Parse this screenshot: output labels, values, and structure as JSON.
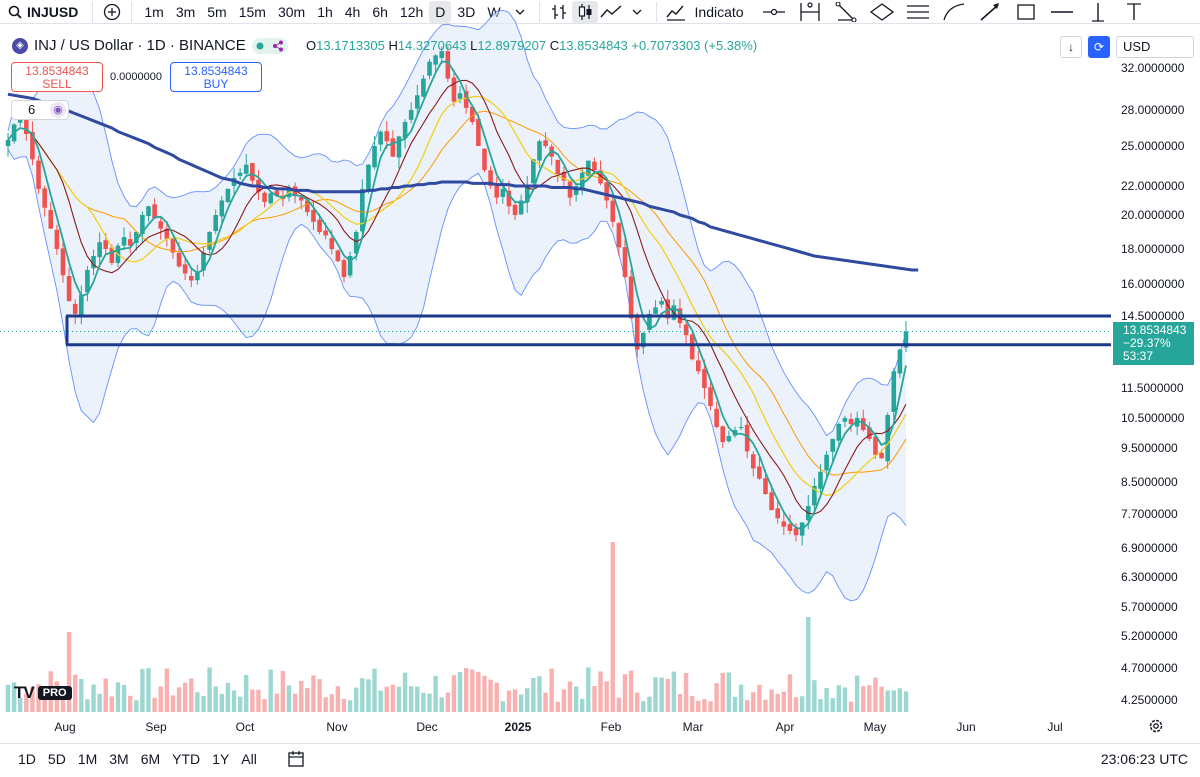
{
  "toolbar": {
    "symbol": "INJUSD",
    "intervals": [
      "1m",
      "3m",
      "5m",
      "15m",
      "30m",
      "1h",
      "4h",
      "6h",
      "12h",
      "D",
      "3D",
      "W"
    ],
    "active_interval": "D",
    "indicators_label": "Indicato"
  },
  "header": {
    "title": "INJ / US Dollar · 1D · BINANCE",
    "o_label": "O",
    "o": "13.1713305",
    "h_label": "H",
    "h": "14.3270643",
    "l_label": "L",
    "l": "12.8979207",
    "c_label": "C",
    "c": "13.8534843",
    "change": "+0.7073303 (+5.38%)"
  },
  "trade": {
    "sell_price": "13.8534843",
    "sell_label": "SELL",
    "spread": "0.0000000",
    "buy_price": "13.8534843",
    "buy_label": "BUY"
  },
  "indicators_count": "6",
  "currency": "USD",
  "current_price": {
    "price": "13.8534843",
    "change_pct": "−29.37%",
    "countdown": "53:37",
    "color": "#26a69a"
  },
  "bottom": {
    "ranges": [
      "1D",
      "5D",
      "1M",
      "3M",
      "6M",
      "YTD",
      "1Y",
      "All"
    ],
    "clock": "23:06:23 UTC"
  },
  "colors": {
    "up": "#26a69a",
    "down": "#ef5350",
    "ma_long": "#2f4aa0",
    "zone": "#1b3a8c",
    "band_fill": "#dce8f7"
  },
  "chart_data": {
    "type": "candlestick",
    "y_scale": "log",
    "y_axis_labels": [
      "32.0000000",
      "28.0000000",
      "25.0000000",
      "22.0000000",
      "20.0000000",
      "18.0000000",
      "16.0000000",
      "14.5000000",
      "11.5000000",
      "10.5000000",
      "9.5000000",
      "8.5000000",
      "7.7000000",
      "6.9000000",
      "6.3000000",
      "5.7000000",
      "5.2000000",
      "4.7000000",
      "4.2500000"
    ],
    "x_axis_labels": [
      "Aug",
      "Sep",
      "Oct",
      "Nov",
      "Dec",
      "2025",
      "Feb",
      "Mar",
      "Apr",
      "May",
      "Jun",
      "Jul"
    ],
    "x_axis_bold": [
      "2025"
    ],
    "closes": [
      25.5,
      26.8,
      27.2,
      26.0,
      24.0,
      21.8,
      20.5,
      19.2,
      18.0,
      16.5,
      15.2,
      14.6,
      15.5,
      16.8,
      17.6,
      18.4,
      18.0,
      17.2,
      18.2,
      18.7,
      18.2,
      19.0,
      20.0,
      20.6,
      19.8,
      19.2,
      18.6,
      17.8,
      17.0,
      16.6,
      16.2,
      16.7,
      17.8,
      19.0,
      20.0,
      21.0,
      21.8,
      22.6,
      23.0,
      23.6,
      22.4,
      21.6,
      20.9,
      21.5,
      21.3,
      21.1,
      21.8,
      21.3,
      21.0,
      20.2,
      19.6,
      19.0,
      18.8,
      18.0,
      17.3,
      16.4,
      17.6,
      19.0,
      21.8,
      23.6,
      25.0,
      26.2,
      25.4,
      24.2,
      25.8,
      27.0,
      28.0,
      29.4,
      31.0,
      32.6,
      33.2,
      33.6,
      31.0,
      28.8,
      29.6,
      28.2,
      27.0,
      25.0,
      23.2,
      22.0,
      21.2,
      21.8,
      20.6,
      20.0,
      21.0,
      22.0,
      24.0,
      25.4,
      25.0,
      24.2,
      22.9,
      22.4,
      21.2,
      22.0,
      23.0,
      23.9,
      23.2,
      22.2,
      21.0,
      19.6,
      18.1,
      16.4,
      14.4,
      13.1,
      13.8,
      14.6,
      14.9,
      15.2,
      14.4,
      15.0,
      14.2,
      13.7,
      12.7,
      12.2,
      11.5,
      10.9,
      10.2,
      9.7,
      9.9,
      10.1,
      10.2,
      9.4,
      8.9,
      8.6,
      8.2,
      7.8,
      7.6,
      7.4,
      7.3,
      7.2,
      7.5,
      7.9,
      8.4,
      8.8,
      9.3,
      9.8,
      10.3,
      10.5,
      10.3,
      10.5,
      10.1,
      9.8,
      9.3,
      9.2,
      10.6,
      12.2,
      13.1,
      13.85
    ],
    "series": [
      {
        "name": "MA long",
        "color": "#2f4aa0",
        "values": [
          29.5,
          29.4,
          29.3,
          29.2,
          29.1,
          28.9,
          28.7,
          28.5,
          28.3,
          28.1,
          27.9,
          27.7,
          27.5,
          27.3,
          27.1,
          26.9,
          26.7,
          26.5,
          26.2,
          26.0,
          25.8,
          25.6,
          25.4,
          25.2,
          24.9,
          24.7,
          24.5,
          24.3,
          24.0,
          23.8,
          23.6,
          23.4,
          23.2,
          23.0,
          22.8,
          22.6,
          22.5,
          22.4,
          22.2,
          22.1,
          22.0,
          22.0,
          21.9,
          21.9,
          21.8,
          21.8,
          21.8,
          21.7,
          21.7,
          21.7,
          21.6,
          21.6,
          21.6,
          21.6,
          21.6,
          21.6,
          21.6,
          21.6,
          21.6,
          21.7,
          21.7,
          21.8,
          21.8,
          21.9,
          21.9,
          22.0,
          22.0,
          22.1,
          22.1,
          22.2,
          22.2,
          22.3,
          22.3,
          22.3,
          22.3,
          22.3,
          22.2,
          22.2,
          22.2,
          22.2,
          22.1,
          22.1,
          22.1,
          22.0,
          22.0,
          22.0,
          22.0,
          22.0,
          22.0,
          21.9,
          21.9,
          21.9,
          21.9,
          21.8,
          21.8,
          21.7,
          21.6,
          21.5,
          21.4,
          21.3,
          21.2,
          21.1,
          21.0,
          20.9,
          20.8,
          20.6,
          20.5,
          20.4,
          20.3,
          20.2,
          20.0,
          19.9,
          19.8,
          19.6,
          19.5,
          19.3,
          19.2,
          19.1,
          19.0,
          18.9,
          18.8,
          18.7,
          18.6,
          18.5,
          18.4,
          18.3,
          18.2,
          18.1,
          18.0,
          17.9,
          17.8,
          17.7,
          17.6,
          17.55,
          17.5,
          17.45,
          17.4,
          17.35,
          17.3,
          17.25,
          17.2,
          17.15,
          17.1,
          17.05,
          17.0,
          16.95,
          16.9,
          16.85,
          16.8,
          16.8
        ]
      }
    ],
    "zone": {
      "upper": 14.5,
      "lower": 13.3
    }
  }
}
